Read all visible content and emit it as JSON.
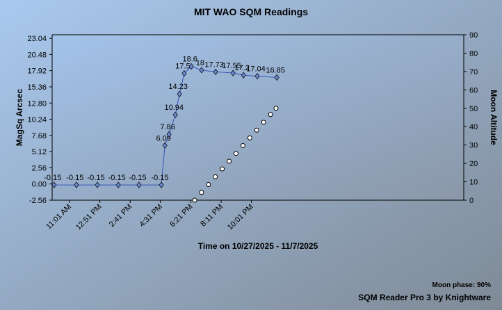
{
  "chart_data": {
    "type": "line",
    "title": "MIT WAO SQM Readings",
    "xlabel": "Time on 10/27/2025 - 11/7/2025",
    "ylabel": "MagSq Arcsec",
    "y2label": "Moon Altitude",
    "xlim": [
      598,
      2091
    ],
    "xticks": [
      {
        "value": 661,
        "label": "11:01 AM"
      },
      {
        "value": 771,
        "label": "12:51 PM"
      },
      {
        "value": 881,
        "label": "2:41 PM"
      },
      {
        "value": 991,
        "label": "4:31 PM"
      },
      {
        "value": 1101,
        "label": "6:21 PM"
      },
      {
        "value": 1211,
        "label": "8:11 PM"
      },
      {
        "value": 1321,
        "label": "10:01 PM"
      }
    ],
    "ylim": [
      -2.56,
      23.6
    ],
    "yticks": [
      -2.56,
      {
        "value": 0,
        "label": "0.00"
      },
      {
        "value": 2.56,
        "label": "2.56"
      },
      {
        "value": 5.12,
        "label": "5.12"
      },
      {
        "value": 7.68,
        "label": "7.68"
      },
      {
        "value": 10.24,
        "label": "10.24"
      },
      {
        "value": 12.8,
        "label": "12.80"
      },
      {
        "value": 15.36,
        "label": "15.36"
      },
      {
        "value": 17.92,
        "label": "17.92"
      },
      {
        "value": 20.48,
        "label": "20.48"
      },
      {
        "value": 23.04,
        "label": "23.04"
      }
    ],
    "y2lim": [
      0,
      90
    ],
    "y2ticks": [
      0,
      10,
      20,
      30,
      40,
      50,
      60,
      70,
      80,
      90
    ],
    "series": [
      {
        "name": "SQM",
        "color": "#6a8fd8",
        "marker": "diamond",
        "x": [
          605,
          686,
          762,
          838,
          913,
          994,
          1007,
          1022,
          1045,
          1060,
          1077,
          1103,
          1140,
          1191,
          1254,
          1292,
          1342,
          1413
        ],
        "values": [
          -0.15,
          -0.15,
          -0.15,
          -0.15,
          -0.15,
          -0.15,
          6.09,
          7.86,
          10.94,
          14.23,
          17.5,
          18.6,
          18.0,
          17.73,
          17.55,
          17.2,
          17.04,
          16.85
        ]
      },
      {
        "name": "Moon",
        "color": "#ffffff",
        "marker": "circle",
        "axis": "y2",
        "x": [
          1115,
          1140,
          1165,
          1190,
          1215,
          1240,
          1265,
          1290,
          1315,
          1340,
          1365,
          1390,
          1410
        ],
        "values": [
          0,
          4.2,
          8.5,
          12.7,
          17,
          21.2,
          25.4,
          29.7,
          33.9,
          38.1,
          42.4,
          46.6,
          50
        ]
      }
    ],
    "footer": {
      "moon_phase": "Moon phase: 90%",
      "credit": "SQM Reader Pro 3 by Knightware"
    }
  }
}
